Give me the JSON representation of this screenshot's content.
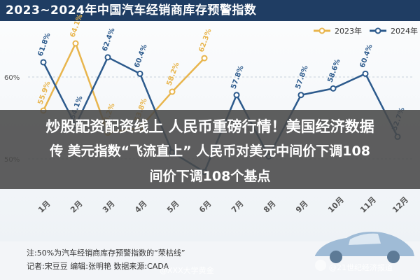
{
  "title": "2023~2024年中国汽车经销商库存预警指数",
  "legend": {
    "series_2023": "2023年",
    "series_2024": "2024年"
  },
  "overlay": {
    "line1": "炒股配资配资线上 人民币重磅行情！美国经济数据",
    "line2": "传 美元指数“飞流直上” 人民币对美元中间价下调108",
    "line3": "间价下调108个基点"
  },
  "footer": {
    "note": "注:50%为汽车经销商库存预警指数的“荣枯线”",
    "credits": "记者:宋豆豆  编辑:张明艳  数据来源:CADA"
  },
  "watermarks": {
    "left": "@XXX大学黄金",
    "right": "@21世纪经济报道"
  },
  "colors": {
    "series_2023": "#e8b54d",
    "series_2024": "#2c5a8c"
  },
  "chart_data": {
    "type": "line",
    "categories": [
      "1月",
      "2月",
      "3月",
      "4月",
      "5月",
      "6月",
      "7月",
      "8月",
      "9月",
      "10月",
      "11月",
      "12月"
    ],
    "y_ticks": [
      "60%",
      "50%"
    ],
    "ylim": [
      40,
      70
    ],
    "series": [
      {
        "name": "2023年",
        "values": [
          55.9,
          64.1,
          53.2,
          53.8,
          58.2,
          62.3,
          null,
          null,
          null,
          null,
          null,
          null
        ],
        "labels": [
          "55.9%",
          "64.1%",
          "53.2%",
          "53.8%",
          "58.2%",
          "62.3%",
          "",
          "",
          "",
          "",
          "",
          ""
        ]
      },
      {
        "name": "2024年",
        "values": [
          61.8,
          54.1,
          62.4,
          60.4,
          50.8,
          48.4,
          57.8,
          50.3,
          57.8,
          58.6,
          60.4,
          52.7
        ],
        "labels": [
          "61.8%",
          "54.1%",
          "62.4%",
          "60.4%",
          "",
          "",
          "57.8%",
          "",
          "57.8%",
          "58.6%",
          "60.4%",
          "52.7%"
        ]
      }
    ]
  }
}
